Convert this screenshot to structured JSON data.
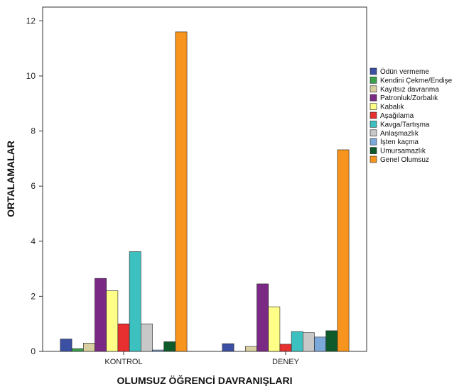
{
  "chart_data": {
    "type": "bar",
    "xlabel": "OLUMSUZ ÖĞRENCİ DAVRANIŞLARI",
    "ylabel": "ORTALAMALAR",
    "ylim": [
      0,
      12.5
    ],
    "yticks": [
      0,
      2,
      4,
      6,
      8,
      10,
      12
    ],
    "grid": false,
    "legend_position": "right",
    "categories": [
      "KONTROL",
      "DENEY"
    ],
    "series": [
      {
        "name": "Ödün vermeme",
        "color": "#3b4fa3",
        "values": [
          0.45,
          0.28
        ]
      },
      {
        "name": "Kendini Çekme/Endişe",
        "color": "#3aa14a",
        "values": [
          0.1,
          0.0
        ]
      },
      {
        "name": "Kayıtsız davranma",
        "color": "#d8d0a0",
        "values": [
          0.3,
          0.18
        ]
      },
      {
        "name": "Patronluk/Zorbalık",
        "color": "#7a2a84",
        "values": [
          2.65,
          2.45
        ]
      },
      {
        "name": "Kabalık",
        "color": "#ffff88",
        "values": [
          2.2,
          1.62
        ]
      },
      {
        "name": "Aşağılama",
        "color": "#e83030",
        "values": [
          1.0,
          0.26
        ]
      },
      {
        "name": "Kavga/Tartışma",
        "color": "#3cc0c0",
        "values": [
          3.62,
          0.72
        ]
      },
      {
        "name": "Anlaşmazlık",
        "color": "#c8c8c8",
        "values": [
          1.0,
          0.68
        ]
      },
      {
        "name": "İşten kaçma",
        "color": "#7aa8d8",
        "values": [
          0.05,
          0.52
        ]
      },
      {
        "name": "Umursamazlık",
        "color": "#0f5a2a",
        "values": [
          0.35,
          0.75
        ]
      },
      {
        "name": "Genel Olumsuz",
        "color": "#f7941d",
        "values": [
          11.6,
          7.32
        ]
      }
    ]
  }
}
